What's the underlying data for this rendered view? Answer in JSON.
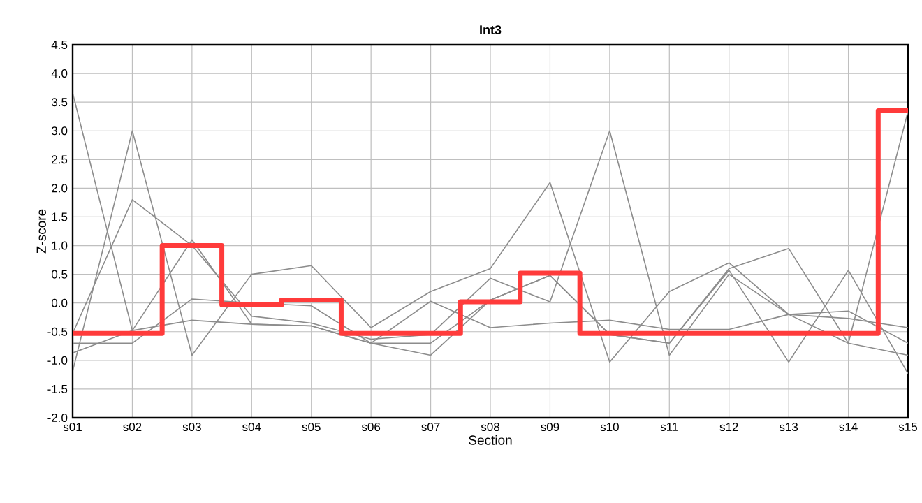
{
  "chart_data": {
    "type": "line",
    "title": "Int3",
    "xlabel": "Section",
    "ylabel": "Z-score",
    "categories": [
      "s01",
      "s02",
      "s03",
      "s04",
      "s05",
      "s06",
      "s07",
      "s08",
      "s09",
      "s10",
      "s11",
      "s12",
      "s13",
      "s14",
      "s15"
    ],
    "series": [
      {
        "color": "#8c8c8c",
        "values": [
          3.66,
          -0.48,
          1.1,
          -0.37,
          -0.4,
          -0.7,
          -0.91,
          0.05,
          0.48,
          -0.55,
          -0.7,
          0.57,
          -1.03,
          0.57,
          -1.23
        ]
      },
      {
        "color": "#8c8c8c",
        "values": [
          -1.19,
          3.0,
          -0.91,
          0.5,
          0.65,
          -0.43,
          0.2,
          0.6,
          2.1,
          -1.03,
          0.2,
          0.7,
          -0.2,
          -0.27,
          -0.43
        ]
      },
      {
        "color": "#8c8c8c",
        "values": [
          -0.53,
          1.8,
          1.0,
          -0.23,
          -0.35,
          -0.63,
          -0.55,
          0.43,
          0.02,
          3.0,
          -0.91,
          0.5,
          -0.2,
          -0.7,
          3.34
        ]
      },
      {
        "color": "#8c8c8c",
        "values": [
          -0.7,
          -0.7,
          0.07,
          0.0,
          -0.05,
          -0.7,
          0.03,
          -0.43,
          -0.35,
          -0.3,
          -0.46,
          -0.46,
          -0.2,
          -0.14,
          -0.7
        ]
      },
      {
        "color": "#8c8c8c",
        "values": [
          -0.87,
          -0.48,
          -0.3,
          -0.37,
          -0.4,
          -0.7,
          -0.7,
          0.05,
          0.48,
          -0.55,
          -0.7,
          0.6,
          0.95,
          -0.7,
          -0.91
        ]
      },
      {
        "type": "step",
        "color": "#ff3b3b",
        "values": [
          -0.53,
          -0.53,
          1.0,
          -0.03,
          0.05,
          -0.53,
          -0.53,
          0.02,
          0.52,
          -0.53,
          -0.53,
          -0.53,
          -0.53,
          -0.53,
          3.35
        ]
      }
    ],
    "ylim": [
      -2.0,
      4.5
    ],
    "yticks": [
      {
        "value": -2,
        "label": "-2.0"
      },
      -1.5,
      {
        "value": -1,
        "label": "-1.0"
      },
      -0.5,
      {
        "value": 0,
        "label": "0.0"
      },
      0.5,
      {
        "value": 1,
        "label": "1.0"
      },
      1.5,
      {
        "value": 2,
        "label": "2.0"
      },
      2.5,
      {
        "value": 3,
        "label": "3.0"
      },
      3.5,
      {
        "value": 4,
        "label": "4.0"
      },
      4.5
    ],
    "grid": true,
    "legend": false,
    "marker": "none",
    "line_style": "solid"
  }
}
